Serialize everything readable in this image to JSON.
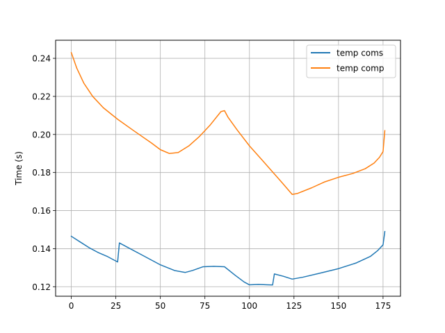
{
  "chart_data": {
    "type": "line",
    "title": "",
    "xlabel": "",
    "ylabel": "Time (s)",
    "xlim": [
      -8.8,
      184.8
    ],
    "ylim": [
      0.115,
      0.2495
    ],
    "xticks": [
      0,
      25,
      50,
      75,
      100,
      125,
      150,
      175
    ],
    "yticks": [
      0.12,
      0.14,
      0.16,
      0.18,
      0.2,
      0.22,
      0.24
    ],
    "ytick_labels": [
      "0.12",
      "0.14",
      "0.16",
      "0.18",
      "0.20",
      "0.22",
      "0.24"
    ],
    "grid": true,
    "legend_position": "upper-right",
    "series": [
      {
        "name": "temp coms",
        "color": "#1f77b4",
        "points": [
          [
            0,
            0.1465
          ],
          [
            5,
            0.1435
          ],
          [
            10,
            0.1405
          ],
          [
            15,
            0.138
          ],
          [
            20,
            0.136
          ],
          [
            26,
            0.133
          ],
          [
            27,
            0.143
          ],
          [
            32,
            0.1405
          ],
          [
            40,
            0.1365
          ],
          [
            50,
            0.1315
          ],
          [
            58,
            0.1285
          ],
          [
            64,
            0.1275
          ],
          [
            68,
            0.1285
          ],
          [
            74,
            0.1305
          ],
          [
            80,
            0.1307
          ],
          [
            86,
            0.1305
          ],
          [
            92,
            0.126
          ],
          [
            97,
            0.1225
          ],
          [
            100,
            0.121
          ],
          [
            105,
            0.1212
          ],
          [
            113,
            0.1209
          ],
          [
            114,
            0.1267
          ],
          [
            119,
            0.1255
          ],
          [
            124,
            0.124
          ],
          [
            130,
            0.125
          ],
          [
            140,
            0.1272
          ],
          [
            150,
            0.1295
          ],
          [
            160,
            0.1325
          ],
          [
            168,
            0.136
          ],
          [
            172,
            0.139
          ],
          [
            175,
            0.142
          ],
          [
            176,
            0.149
          ]
        ]
      },
      {
        "name": "temp comp",
        "color": "#ff7f0e",
        "points": [
          [
            0,
            0.243
          ],
          [
            3,
            0.235
          ],
          [
            7,
            0.227
          ],
          [
            12,
            0.22
          ],
          [
            18,
            0.214
          ],
          [
            26,
            0.208
          ],
          [
            35,
            0.202
          ],
          [
            45,
            0.1955
          ],
          [
            50,
            0.192
          ],
          [
            55,
            0.19
          ],
          [
            60,
            0.1905
          ],
          [
            66,
            0.194
          ],
          [
            72,
            0.199
          ],
          [
            78,
            0.205
          ],
          [
            84,
            0.212
          ],
          [
            86,
            0.2125
          ],
          [
            88,
            0.209
          ],
          [
            93,
            0.2025
          ],
          [
            100,
            0.194
          ],
          [
            110,
            0.1835
          ],
          [
            118,
            0.175
          ],
          [
            124,
            0.1685
          ],
          [
            127,
            0.169
          ],
          [
            135,
            0.172
          ],
          [
            142,
            0.175
          ],
          [
            150,
            0.1775
          ],
          [
            158,
            0.1795
          ],
          [
            165,
            0.182
          ],
          [
            170,
            0.185
          ],
          [
            173,
            0.188
          ],
          [
            175,
            0.191
          ],
          [
            176,
            0.202
          ]
        ]
      }
    ]
  }
}
